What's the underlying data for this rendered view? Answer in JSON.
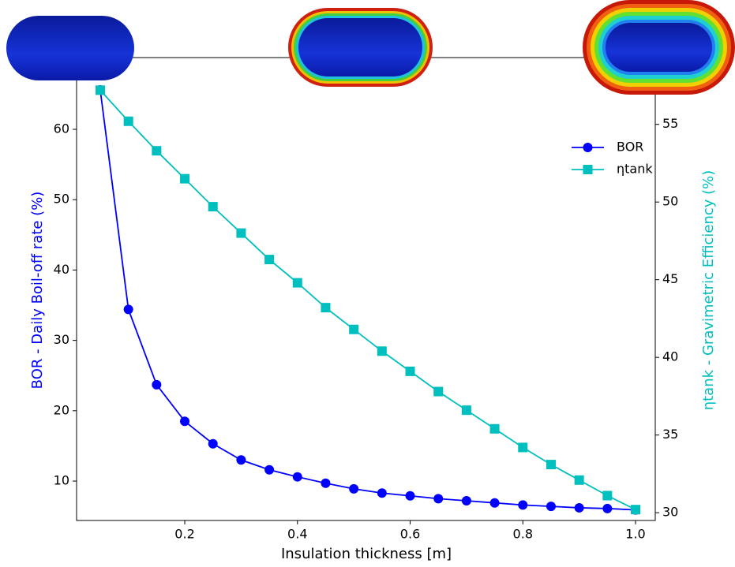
{
  "chart_data": {
    "type": "line",
    "x_label": "Insulation thickness [m]",
    "y_label": "BOR - Daily Boil-off rate (%)",
    "y2_label": "ηtank - Gravimetric Efficiency (%)",
    "x": [
      0.05,
      0.1,
      0.15,
      0.2,
      0.25,
      0.3,
      0.35,
      0.4,
      0.45,
      0.5,
      0.55,
      0.6,
      0.65,
      0.7,
      0.75,
      0.8,
      0.85,
      0.9,
      0.95,
      1.0
    ],
    "series": [
      {
        "name": "BOR",
        "color": "#0000ff",
        "marker": "circle",
        "axis": "y",
        "values": [
          65.6,
          34.4,
          23.7,
          18.5,
          15.3,
          13.0,
          11.6,
          10.6,
          9.7,
          8.9,
          8.3,
          7.9,
          7.5,
          7.2,
          6.9,
          6.6,
          6.4,
          6.2,
          6.1,
          5.9
        ]
      },
      {
        "name": "ηtank",
        "color": "#00bfbf",
        "marker": "square",
        "axis": "y2",
        "values": [
          57.2,
          55.2,
          53.3,
          51.5,
          49.7,
          48.0,
          46.3,
          44.8,
          43.2,
          41.8,
          40.4,
          39.1,
          37.8,
          36.6,
          35.4,
          34.2,
          33.1,
          32.1,
          31.1,
          30.2
        ]
      }
    ],
    "xlim": [
      0.008,
      1.035
    ],
    "xticks": [
      0.2,
      0.4,
      0.6,
      0.8,
      {
        "value": 1,
        "label": "1.0"
      }
    ],
    "ylim": [
      4.4,
      70.2
    ],
    "yticks": [
      10,
      20,
      30,
      40,
      50,
      60
    ],
    "y2lim": [
      29.5,
      59.3
    ],
    "y2ticks": [
      30,
      35,
      40,
      45,
      50,
      55
    ],
    "legend": "upper right",
    "grid": false
  }
}
